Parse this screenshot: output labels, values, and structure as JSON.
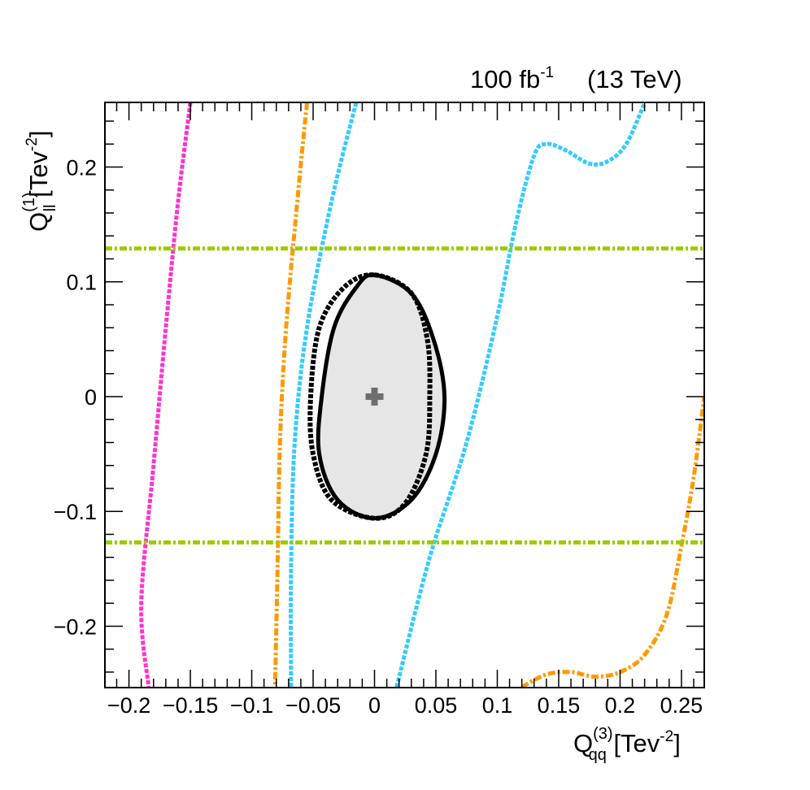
{
  "chart_data": {
    "type": "line",
    "header": {
      "lumi_value": "100 fb",
      "lumi_exp": "-1",
      "energy": "(13 TeV)"
    },
    "xaxis": {
      "label_main": "Q",
      "label_sup": "(3)",
      "label_sub": "qq",
      "label_unit_open": " [Tev",
      "label_unit_exp": "-2",
      "label_unit_close": "]",
      "range": [
        -0.2196,
        0.2686
      ],
      "ticks": [
        -0.2,
        -0.15,
        -0.1,
        -0.05,
        0,
        0.05,
        0.1,
        0.15,
        0.2,
        0.25
      ],
      "tick_labels": [
        "−0.2",
        "−0.15",
        "−0.1",
        "−0.05",
        "0",
        "0.05",
        "0.1",
        "0.15",
        "0.2",
        "0.25"
      ]
    },
    "yaxis": {
      "label_main": "Q",
      "label_sup": "(1)",
      "label_sub": "ll",
      "label_unit_open": " [Tev",
      "label_unit_exp": "-2",
      "label_unit_close": "]",
      "range": [
        -0.2535,
        0.2563
      ],
      "ticks": [
        -0.2,
        -0.1,
        0,
        0.1,
        0.2
      ],
      "tick_labels": [
        "−0.2",
        "−0.1",
        "0",
        "0.1",
        "0.2"
      ]
    },
    "best_fit": {
      "x": 0,
      "y": 0,
      "marker": "plus-marker",
      "color": "#6e6e6e"
    },
    "filled_region": {
      "color": "#e6e6e6",
      "edge": "#000000",
      "points": [
        [
          0,
          0.106
        ],
        [
          0.03,
          0.09
        ],
        [
          0.048,
          0.05
        ],
        [
          0.057,
          0
        ],
        [
          0.05,
          -0.05
        ],
        [
          0.03,
          -0.09
        ],
        [
          0,
          -0.106
        ],
        [
          -0.03,
          -0.09
        ],
        [
          -0.045,
          -0.05
        ],
        [
          -0.043,
          0
        ],
        [
          -0.033,
          0.06
        ],
        [
          -0.015,
          0.095
        ],
        [
          0,
          0.106
        ]
      ]
    },
    "series": [
      {
        "id": "inner-contour",
        "color": "#000000",
        "style": "dotted",
        "points": [
          [
            0,
            0.106
          ],
          [
            0.03,
            0.09
          ],
          [
            0.043,
            0.05
          ],
          [
            0.045,
            0
          ],
          [
            0.042,
            -0.05
          ],
          [
            0.025,
            -0.093
          ],
          [
            0,
            -0.106
          ],
          [
            -0.035,
            -0.09
          ],
          [
            -0.05,
            -0.05
          ],
          [
            -0.052,
            0
          ],
          [
            -0.045,
            0.06
          ],
          [
            -0.025,
            0.095
          ],
          [
            0,
            0.106
          ]
        ]
      },
      {
        "id": "pink-line",
        "color": "#ff33cc",
        "style": "dotted",
        "points": [
          [
            -0.15,
            0.256
          ],
          [
            -0.16,
            0.17
          ],
          [
            -0.17,
            0.06
          ],
          [
            -0.18,
            -0.06
          ],
          [
            -0.19,
            -0.18
          ],
          [
            -0.184,
            -0.253
          ]
        ]
      },
      {
        "id": "orange-left",
        "color": "#ff9900",
        "style": "dash-dot",
        "points": [
          [
            -0.055,
            0.256
          ],
          [
            -0.062,
            0.18
          ],
          [
            -0.072,
            0.06
          ],
          [
            -0.077,
            -0.04
          ],
          [
            -0.079,
            -0.15
          ],
          [
            -0.081,
            -0.253
          ]
        ]
      },
      {
        "id": "orange-right",
        "color": "#ff9900",
        "style": "dash-dot",
        "points": [
          [
            0.12,
            -0.253
          ],
          [
            0.14,
            -0.242
          ],
          [
            0.16,
            -0.24
          ],
          [
            0.18,
            -0.244
          ],
          [
            0.2,
            -0.24
          ],
          [
            0.22,
            -0.225
          ],
          [
            0.238,
            -0.19
          ],
          [
            0.25,
            -0.13
          ],
          [
            0.26,
            -0.07
          ],
          [
            0.2686,
            0
          ]
        ]
      },
      {
        "id": "cyan-left",
        "color": "#33ccff",
        "style": "dotted",
        "points": [
          [
            -0.015,
            0.256
          ],
          [
            -0.035,
            0.17
          ],
          [
            -0.055,
            0.06
          ],
          [
            -0.065,
            -0.04
          ],
          [
            -0.068,
            -0.15
          ],
          [
            -0.068,
            -0.253
          ]
        ]
      },
      {
        "id": "cyan-right",
        "color": "#33ccff",
        "style": "dotted",
        "points": [
          [
            0.018,
            -0.253
          ],
          [
            0.045,
            -0.14
          ],
          [
            0.075,
            -0.04
          ],
          [
            0.1,
            0.07
          ],
          [
            0.115,
            0.15
          ],
          [
            0.13,
            0.21
          ],
          [
            0.14,
            0.22
          ],
          [
            0.155,
            0.215
          ],
          [
            0.175,
            0.203
          ],
          [
            0.19,
            0.205
          ],
          [
            0.205,
            0.22
          ],
          [
            0.22,
            0.256
          ]
        ]
      },
      {
        "id": "green-upper",
        "color": "#99cc00",
        "style": "dash-dot",
        "points": [
          [
            -0.2196,
            0.129
          ],
          [
            0.2686,
            0.129
          ]
        ]
      },
      {
        "id": "green-lower",
        "color": "#99cc00",
        "style": "dash-dot",
        "points": [
          [
            -0.2196,
            -0.127
          ],
          [
            0.2686,
            -0.127
          ]
        ]
      }
    ]
  }
}
